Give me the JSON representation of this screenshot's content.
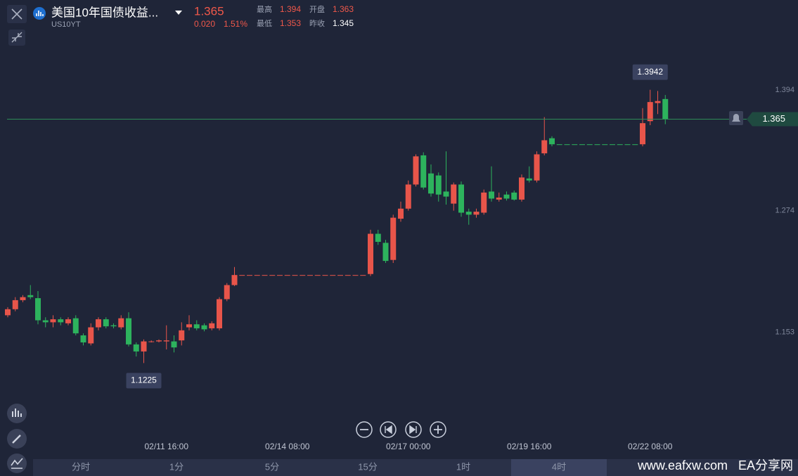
{
  "header": {
    "title": "美国10年国债收益...",
    "symbol": "US10YT",
    "price": "1.365",
    "change": "0.020",
    "change_pct": "1.51%",
    "stats": [
      {
        "label": "最高",
        "value": "1.394",
        "color": "#f0584a"
      },
      {
        "label": "开盘",
        "value": "1.363",
        "color": "#f0584a"
      },
      {
        "label": "最低",
        "value": "1.353",
        "color": "#f0584a"
      },
      {
        "label": "昨收",
        "value": "1.345",
        "color": "#ffffff"
      }
    ]
  },
  "chart_data": {
    "type": "candlestick",
    "up_color": "#e8554a",
    "down_color": "#2db35d",
    "ylim": [
      1.064,
      1.452
    ],
    "yticks": [
      1.153,
      1.274,
      1.394
    ],
    "last_price": 1.365,
    "max_label": 1.3942,
    "min_label": 1.1225,
    "categories": [
      null,
      null,
      null,
      null,
      null,
      null,
      null,
      null,
      null,
      null,
      null,
      null,
      null,
      null,
      null,
      null,
      null,
      null,
      null,
      null,
      null,
      "02/11 16:00",
      null,
      null,
      null,
      null,
      null,
      null,
      null,
      null,
      null,
      null,
      null,
      null,
      null,
      null,
      null,
      "02/14 08:00",
      null,
      null,
      null,
      null,
      null,
      null,
      null,
      null,
      null,
      null,
      null,
      null,
      null,
      null,
      null,
      "02/17 00:00",
      null,
      null,
      null,
      null,
      null,
      null,
      null,
      null,
      null,
      null,
      null,
      null,
      null,
      null,
      null,
      "02/19 16:00",
      null,
      null,
      null,
      null,
      null,
      null,
      null,
      null,
      null,
      null,
      null,
      null,
      null,
      null,
      null,
      "02/22 08:00",
      null,
      null
    ],
    "open": [
      1.17,
      1.176,
      1.185,
      1.19,
      1.187,
      1.165,
      1.163,
      1.166,
      1.162,
      1.167,
      1.15,
      1.142,
      1.158,
      1.166,
      1.16,
      1.158,
      1.167,
      1.141,
      1.134,
      1.144,
      1.144,
      1.144,
      1.144,
      1.145,
      1.158,
      1.161,
      1.16,
      1.157,
      1.157,
      1.186,
      1.2,
      1.21,
      1.21,
      1.21,
      1.21,
      1.21,
      1.21,
      1.21,
      1.21,
      1.21,
      1.21,
      1.21,
      1.21,
      1.21,
      1.21,
      1.21,
      1.21,
      1.21,
      1.211,
      1.251,
      1.242,
      1.225,
      1.266,
      1.276,
      1.3,
      1.329,
      1.311,
      1.309,
      1.293,
      1.281,
      1.3,
      1.273,
      1.27,
      1.272,
      1.293,
      1.285,
      1.29,
      1.292,
      1.285,
      1.306,
      1.304,
      1.331,
      1.346,
      1.34,
      1.34,
      1.34,
      1.34,
      1.34,
      1.34,
      1.34,
      1.34,
      1.34,
      1.34,
      1.34,
      1.34,
      1.363,
      1.381,
      1.385
    ],
    "high": [
      1.178,
      1.188,
      1.19,
      1.2,
      1.194,
      1.168,
      1.17,
      1.168,
      1.168,
      1.17,
      1.152,
      1.162,
      1.168,
      1.168,
      1.162,
      1.17,
      1.173,
      1.143,
      1.146,
      1.145,
      1.146,
      1.16,
      1.15,
      1.163,
      1.17,
      1.165,
      1.162,
      1.164,
      1.188,
      1.202,
      1.218,
      1.21,
      1.21,
      1.21,
      1.21,
      1.21,
      1.21,
      1.21,
      1.21,
      1.21,
      1.21,
      1.21,
      1.21,
      1.21,
      1.21,
      1.21,
      1.21,
      1.21,
      1.255,
      1.255,
      1.245,
      1.27,
      1.283,
      1.304,
      1.33,
      1.332,
      1.32,
      1.312,
      1.333,
      1.302,
      1.303,
      1.276,
      1.276,
      1.295,
      1.318,
      1.292,
      1.293,
      1.294,
      1.31,
      1.318,
      1.333,
      1.367,
      1.348,
      1.34,
      1.34,
      1.34,
      1.34,
      1.34,
      1.34,
      1.34,
      1.34,
      1.34,
      1.34,
      1.34,
      1.376,
      1.3942,
      1.393,
      1.389
    ],
    "low": [
      1.168,
      1.174,
      1.183,
      1.186,
      1.161,
      1.158,
      1.158,
      1.16,
      1.16,
      1.15,
      1.14,
      1.14,
      1.155,
      1.157,
      1.157,
      1.156,
      1.139,
      1.129,
      1.1225,
      1.143,
      1.143,
      1.136,
      1.133,
      1.14,
      1.155,
      1.155,
      1.154,
      1.155,
      1.155,
      1.184,
      1.199,
      1.21,
      1.21,
      1.21,
      1.21,
      1.21,
      1.21,
      1.21,
      1.21,
      1.21,
      1.21,
      1.21,
      1.21,
      1.21,
      1.21,
      1.21,
      1.21,
      1.21,
      1.209,
      1.24,
      1.222,
      1.222,
      1.263,
      1.274,
      1.298,
      1.295,
      1.288,
      1.283,
      1.28,
      1.274,
      1.268,
      1.26,
      1.267,
      1.27,
      1.283,
      1.283,
      1.284,
      1.284,
      1.283,
      1.302,
      1.302,
      1.329,
      1.338,
      1.34,
      1.34,
      1.34,
      1.34,
      1.34,
      1.34,
      1.34,
      1.34,
      1.34,
      1.34,
      1.34,
      1.338,
      1.359,
      1.37,
      1.36
    ],
    "close": [
      1.176,
      1.185,
      1.188,
      1.188,
      1.165,
      1.163,
      1.166,
      1.163,
      1.166,
      1.152,
      1.143,
      1.158,
      1.166,
      1.159,
      1.159,
      1.167,
      1.141,
      1.134,
      1.144,
      1.144,
      1.145,
      1.145,
      1.138,
      1.155,
      1.161,
      1.157,
      1.156,
      1.162,
      1.186,
      1.2,
      1.21,
      1.21,
      1.21,
      1.21,
      1.21,
      1.21,
      1.21,
      1.21,
      1.21,
      1.21,
      1.21,
      1.21,
      1.21,
      1.21,
      1.21,
      1.21,
      1.21,
      1.21,
      1.251,
      1.243,
      1.224,
      1.267,
      1.276,
      1.3,
      1.328,
      1.297,
      1.291,
      1.29,
      1.288,
      1.3,
      1.272,
      1.27,
      1.273,
      1.292,
      1.286,
      1.287,
      1.286,
      1.285,
      1.307,
      1.304,
      1.33,
      1.344,
      1.34,
      1.34,
      1.34,
      1.34,
      1.34,
      1.34,
      1.34,
      1.34,
      1.34,
      1.34,
      1.34,
      1.34,
      1.361,
      1.382,
      1.383,
      1.365
    ]
  },
  "tabs": [
    "分时",
    "1分",
    "5分",
    "15分",
    "1时",
    "4时"
  ],
  "active_tab": 5,
  "watermark": "www.eafxw.com   EA分享网"
}
